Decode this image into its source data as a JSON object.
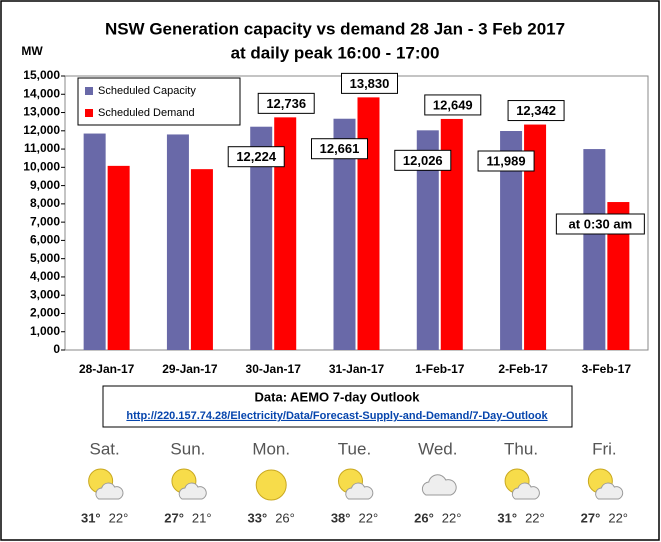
{
  "chart_data": {
    "type": "bar",
    "title": "NSW Generation capacity vs demand 28 Jan - 3 Feb 2017",
    "subtitle": "at daily peak 16:00 - 17:00",
    "y_label": "MW",
    "categories": [
      "28-Jan-17",
      "29-Jan-17",
      "30-Jan-17",
      "31-Jan-17",
      "1-Feb-17",
      "2-Feb-17",
      "3-Feb-17"
    ],
    "series": [
      {
        "name": "Scheduled Capacity",
        "color": "#6969a8",
        "values": [
          11850,
          11800,
          12224,
          12661,
          12026,
          11989,
          11000
        ],
        "value_labels": [
          null,
          null,
          "12,224",
          "12,661",
          "12,026",
          "11,989",
          null
        ]
      },
      {
        "name": "Scheduled Demand",
        "color": "#ff0000",
        "values": [
          10080,
          9900,
          12736,
          13830,
          12649,
          12342,
          8100
        ],
        "value_labels": [
          null,
          null,
          "12,736",
          "13,830",
          "12,649",
          "12,342",
          null
        ]
      }
    ],
    "annotation": "at 0:30 am",
    "ylim": [
      0,
      15000
    ],
    "yticks": [
      0,
      {
        "value": 1000,
        "label": "1,000"
      },
      {
        "value": 2000,
        "label": "2,000"
      },
      {
        "value": 3000,
        "label": "3,000"
      },
      {
        "value": 4000,
        "label": "4,000"
      },
      {
        "value": 5000,
        "label": "5,000"
      },
      {
        "value": 6000,
        "label": "6,000"
      },
      {
        "value": 7000,
        "label": "7,000"
      },
      {
        "value": 8000,
        "label": "8,000"
      },
      {
        "value": 9000,
        "label": "9,000"
      },
      {
        "value": 10000,
        "label": "10,000"
      },
      {
        "value": 11000,
        "label": "11,000"
      },
      {
        "value": 12000,
        "label": "12,000"
      },
      {
        "value": 13000,
        "label": "13,000"
      },
      {
        "value": 14000,
        "label": "14,000"
      },
      {
        "value": 15000,
        "label": "15,000"
      }
    ],
    "grid": false,
    "legend": "top-left"
  },
  "source": {
    "title": "Data: AEMO 7-day Outlook",
    "url": "http://220.157.74.28/Electricity/Data/Forecast-Supply-and-Demand/7-Day-Outlook"
  },
  "weather": [
    {
      "day": "Sat.",
      "high": "31°",
      "low": "22°"
    },
    {
      "day": "Sun.",
      "high": "27°",
      "low": "21°"
    },
    {
      "day": "Mon.",
      "high": "33°",
      "low": "26°"
    },
    {
      "day": "Tue.",
      "high": "38°",
      "low": "22°"
    },
    {
      "day": "Wed.",
      "high": "26°",
      "low": "22°"
    },
    {
      "day": "Thu.",
      "high": "31°",
      "low": "22°"
    },
    {
      "day": "Fri.",
      "high": "27°",
      "low": "22°"
    }
  ]
}
